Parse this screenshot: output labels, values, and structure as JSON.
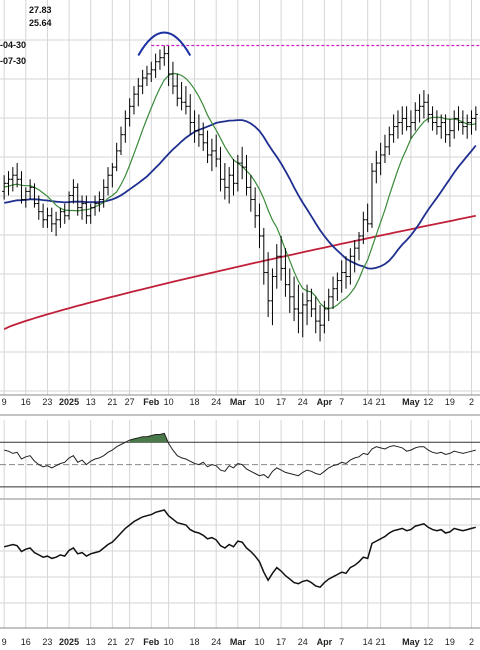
{
  "chart_data": {
    "type": "line",
    "title": "",
    "colors": {
      "background": "#ffffff",
      "grid": "#d6d6d6",
      "price_bars": "#000000",
      "ma_fast": "#3a8a3a",
      "ma_mid": "#1f2f8f",
      "ma_slow": "#c0203a",
      "resistance": "#d020c8",
      "arc": "#1a2fa0",
      "rsi_line": "#222222",
      "rsi_fill": "#4a7a4a",
      "lower_line": "#111111"
    },
    "legend_values": [
      "27.83",
      "25.64",
      "-04-30",
      "-07-30"
    ],
    "x_tick_labels": [
      {
        "label": "9",
        "bold": false
      },
      {
        "label": "16",
        "bold": false
      },
      {
        "label": "23",
        "bold": false
      },
      {
        "label": "2025",
        "bold": true
      },
      {
        "label": "13",
        "bold": false
      },
      {
        "label": "21",
        "bold": false
      },
      {
        "label": "27",
        "bold": false
      },
      {
        "label": "Feb",
        "bold": true
      },
      {
        "label": "10",
        "bold": false
      },
      {
        "label": "18",
        "bold": false
      },
      {
        "label": "24",
        "bold": false
      },
      {
        "label": "Mar",
        "bold": true
      },
      {
        "label": "10",
        "bold": false
      },
      {
        "label": "17",
        "bold": false
      },
      {
        "label": "24",
        "bold": false
      },
      {
        "label": "Apr",
        "bold": true
      },
      {
        "label": "7",
        "bold": false
      },
      {
        "label": "14",
        "bold": false
      },
      {
        "label": "21",
        "bold": false
      },
      {
        "label": "May",
        "bold": true
      },
      {
        "label": "12",
        "bold": false
      },
      {
        "label": "19",
        "bold": false
      },
      {
        "label": "2",
        "bold": false
      }
    ],
    "x_tick_index": [
      0,
      5,
      10,
      15,
      20,
      25,
      29,
      34,
      38,
      44,
      49,
      54,
      59,
      64,
      69,
      74,
      78,
      84,
      87,
      94,
      98,
      103,
      108
    ],
    "price_ohlc": [
      [
        23.9,
        24.3,
        23.7,
        24.1
      ],
      [
        24.1,
        24.4,
        23.8,
        24.2
      ],
      [
        24.2,
        24.5,
        23.9,
        24.3
      ],
      [
        24.3,
        24.6,
        24.0,
        24.2
      ],
      [
        24.2,
        24.4,
        23.6,
        23.7
      ],
      [
        23.7,
        24.0,
        23.5,
        23.9
      ],
      [
        23.9,
        24.2,
        23.7,
        24.0
      ],
      [
        24.0,
        24.1,
        23.5,
        23.6
      ],
      [
        23.6,
        23.8,
        23.2,
        23.4
      ],
      [
        23.4,
        23.6,
        23.0,
        23.2
      ],
      [
        23.2,
        23.5,
        23.0,
        23.3
      ],
      [
        23.3,
        23.5,
        22.9,
        23.1
      ],
      [
        23.1,
        23.4,
        22.8,
        23.2
      ],
      [
        23.2,
        23.5,
        23.0,
        23.4
      ],
      [
        23.4,
        23.6,
        23.1,
        23.3
      ],
      [
        23.3,
        23.9,
        23.2,
        23.8
      ],
      [
        23.8,
        24.2,
        23.6,
        24.0
      ],
      [
        24.0,
        24.1,
        23.3,
        23.5
      ],
      [
        23.5,
        23.8,
        23.2,
        23.6
      ],
      [
        23.6,
        23.8,
        23.1,
        23.3
      ],
      [
        23.3,
        23.6,
        23.1,
        23.5
      ],
      [
        23.5,
        23.8,
        23.3,
        23.6
      ],
      [
        23.6,
        23.9,
        23.4,
        23.7
      ],
      [
        23.7,
        24.2,
        23.5,
        24.0
      ],
      [
        24.0,
        24.5,
        23.8,
        24.3
      ],
      [
        24.3,
        24.6,
        24.0,
        24.5
      ],
      [
        24.5,
        25.1,
        24.4,
        24.9
      ],
      [
        24.9,
        25.5,
        24.8,
        25.3
      ],
      [
        25.3,
        25.9,
        25.1,
        25.7
      ],
      [
        25.7,
        26.2,
        25.5,
        26.0
      ],
      [
        26.0,
        26.5,
        25.8,
        26.3
      ],
      [
        26.3,
        26.7,
        26.0,
        26.5
      ],
      [
        26.5,
        26.9,
        26.3,
        26.7
      ],
      [
        26.7,
        27.0,
        26.5,
        26.8
      ],
      [
        26.8,
        27.1,
        26.6,
        26.9
      ],
      [
        26.9,
        27.3,
        26.7,
        27.1
      ],
      [
        27.1,
        27.4,
        26.9,
        27.2
      ],
      [
        27.2,
        27.5,
        27.0,
        27.3
      ],
      [
        27.3,
        27.5,
        26.5,
        26.8
      ],
      [
        26.8,
        27.1,
        26.3,
        26.5
      ],
      [
        26.5,
        26.8,
        26.0,
        26.2
      ],
      [
        26.2,
        26.6,
        25.9,
        26.1
      ],
      [
        26.1,
        26.5,
        25.8,
        26.0
      ],
      [
        26.0,
        26.3,
        25.3,
        25.6
      ],
      [
        25.6,
        25.9,
        25.1,
        25.4
      ],
      [
        25.4,
        25.8,
        25.0,
        25.3
      ],
      [
        25.3,
        25.6,
        24.9,
        25.1
      ],
      [
        25.1,
        25.4,
        24.6,
        24.8
      ],
      [
        24.8,
        25.2,
        24.4,
        24.9
      ],
      [
        24.9,
        25.3,
        24.5,
        24.7
      ],
      [
        24.7,
        25.0,
        23.9,
        24.2
      ],
      [
        24.2,
        24.6,
        23.7,
        24.0
      ],
      [
        24.0,
        24.5,
        23.6,
        24.3
      ],
      [
        24.3,
        24.7,
        23.8,
        24.1
      ],
      [
        24.1,
        24.8,
        23.9,
        24.6
      ],
      [
        24.6,
        25.0,
        24.2,
        24.5
      ],
      [
        24.5,
        24.8,
        23.8,
        24.0
      ],
      [
        24.0,
        24.3,
        23.4,
        23.7
      ],
      [
        23.7,
        24.0,
        23.0,
        23.3
      ],
      [
        23.3,
        23.6,
        22.5,
        22.8
      ],
      [
        22.8,
        23.0,
        21.6,
        21.9
      ],
      [
        21.9,
        22.4,
        20.8,
        21.2
      ],
      [
        21.2,
        22.0,
        20.6,
        21.8
      ],
      [
        21.8,
        22.6,
        21.5,
        22.3
      ],
      [
        22.3,
        22.8,
        21.7,
        22.0
      ],
      [
        22.0,
        22.5,
        21.3,
        21.6
      ],
      [
        21.6,
        22.0,
        20.9,
        21.3
      ],
      [
        21.3,
        21.8,
        20.7,
        21.0
      ],
      [
        21.0,
        21.6,
        20.4,
        20.9
      ],
      [
        20.9,
        21.4,
        20.3,
        21.1
      ],
      [
        21.1,
        21.6,
        20.6,
        21.2
      ],
      [
        21.2,
        21.5,
        20.8,
        21.0
      ],
      [
        21.0,
        21.3,
        20.4,
        20.7
      ],
      [
        20.7,
        21.1,
        20.2,
        20.6
      ],
      [
        20.6,
        21.2,
        20.4,
        21.0
      ],
      [
        21.0,
        21.5,
        20.7,
        21.3
      ],
      [
        21.3,
        21.8,
        21.0,
        21.5
      ],
      [
        21.5,
        21.9,
        21.2,
        21.7
      ],
      [
        21.7,
        22.2,
        21.4,
        21.9
      ],
      [
        21.9,
        22.3,
        21.5,
        21.8
      ],
      [
        21.8,
        22.5,
        21.6,
        22.3
      ],
      [
        22.3,
        22.7,
        21.9,
        22.5
      ],
      [
        22.5,
        22.9,
        22.2,
        22.8
      ],
      [
        22.8,
        23.4,
        22.6,
        23.2
      ],
      [
        23.2,
        23.6,
        22.9,
        23.1
      ],
      [
        23.1,
        24.6,
        23.0,
        24.4
      ],
      [
        24.4,
        24.9,
        24.1,
        24.6
      ],
      [
        24.6,
        25.1,
        24.3,
        24.8
      ],
      [
        24.8,
        25.3,
        24.6,
        25.0
      ],
      [
        25.0,
        25.5,
        24.8,
        25.3
      ],
      [
        25.3,
        25.8,
        25.1,
        25.5
      ],
      [
        25.5,
        25.9,
        25.2,
        25.6
      ],
      [
        25.6,
        26.0,
        25.3,
        25.7
      ],
      [
        25.7,
        26.0,
        25.4,
        25.5
      ],
      [
        25.5,
        25.9,
        25.2,
        25.6
      ],
      [
        25.6,
        26.1,
        25.4,
        25.9
      ],
      [
        25.9,
        26.3,
        25.6,
        26.0
      ],
      [
        26.0,
        26.4,
        25.7,
        26.1
      ],
      [
        26.1,
        26.3,
        25.6,
        25.8
      ],
      [
        25.8,
        26.0,
        25.4,
        25.6
      ],
      [
        25.6,
        25.9,
        25.3,
        25.5
      ],
      [
        25.5,
        25.8,
        25.2,
        25.6
      ],
      [
        25.6,
        25.8,
        25.1,
        25.3
      ],
      [
        25.3,
        25.7,
        25.0,
        25.4
      ],
      [
        25.4,
        25.9,
        25.2,
        25.7
      ],
      [
        25.7,
        26.0,
        25.4,
        25.6
      ],
      [
        25.6,
        25.9,
        25.3,
        25.5
      ],
      [
        25.5,
        25.8,
        25.2,
        25.6
      ],
      [
        25.6,
        25.9,
        25.3,
        25.7
      ],
      [
        25.7,
        26.0,
        25.4,
        25.8
      ]
    ],
    "ma_fast": [],
    "ma_mid": [],
    "ma_slow": [],
    "price_ylim": [
      19.0,
      28.5
    ],
    "resistance_level": 27.5,
    "rsi": [
      63,
      62,
      60,
      61,
      55,
      57,
      58,
      53,
      50,
      48,
      49,
      47,
      49,
      51,
      52,
      56,
      58,
      52,
      54,
      50,
      53,
      55,
      56,
      58,
      61,
      63,
      66,
      68,
      70,
      72,
      73,
      74,
      75,
      75,
      76,
      77,
      77,
      78,
      69,
      63,
      58,
      56,
      55,
      53,
      51,
      50,
      52,
      48,
      50,
      49,
      45,
      44,
      49,
      47,
      51,
      50,
      46,
      44,
      42,
      40,
      41,
      38,
      44,
      47,
      45,
      43,
      42,
      41,
      40,
      43,
      45,
      44,
      42,
      41,
      44,
      47,
      49,
      50,
      52,
      51,
      54,
      56,
      57,
      60,
      59,
      64,
      66,
      65,
      64,
      66,
      67,
      66,
      65,
      62,
      63,
      65,
      66,
      66,
      63,
      61,
      60,
      61,
      59,
      60,
      62,
      61,
      60,
      61,
      62,
      63
    ],
    "rsi_ylim": [
      20,
      90
    ],
    "rsi_levels": [
      70,
      50,
      30
    ],
    "lower_indicator": [],
    "lower_ylim": [
      0,
      100
    ]
  }
}
